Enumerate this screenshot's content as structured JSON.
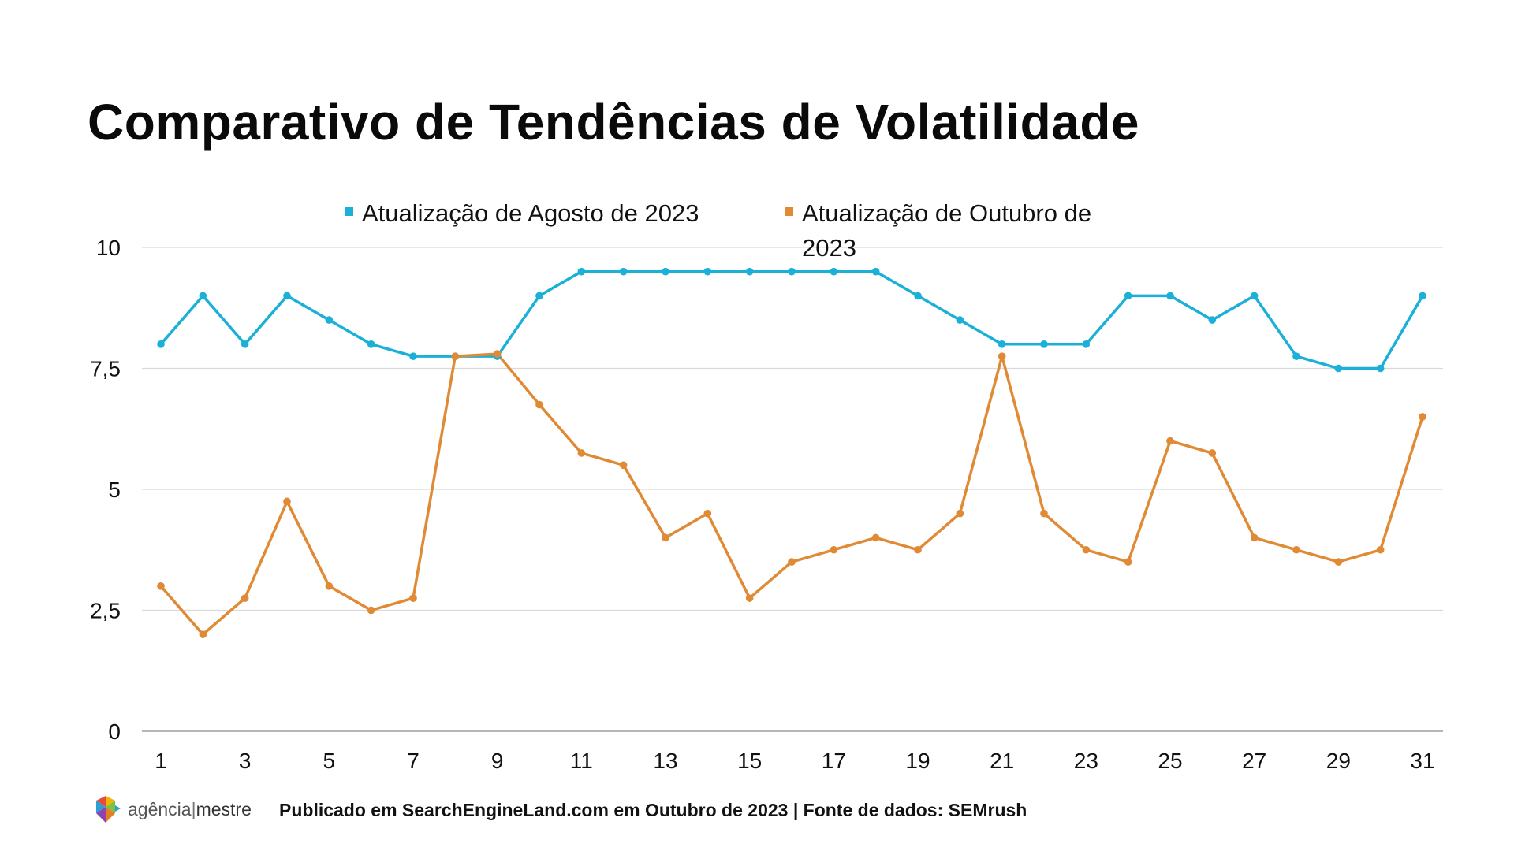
{
  "footer": {
    "logo_brand": "agência",
    "logo_separator": "|",
    "logo_brand2": "mestre",
    "source": "Publicado em SearchEngineLand.com em Outubro de 2023 | Fonte de dados: SEMrush"
  },
  "colors": {
    "series_aug": "#1ab0d8",
    "series_oct": "#e08a35",
    "grid": "#d9d9d9",
    "axis": "#9e9e9e"
  },
  "chart_data": {
    "type": "line",
    "title": "Comparativo de Tendências de Volatilidade",
    "xlabel": "",
    "ylabel": "",
    "ylim": [
      0,
      10
    ],
    "yticks": [
      0,
      2.5,
      5,
      7.5,
      10
    ],
    "ytick_labels": [
      "0",
      "2,5",
      "5",
      "7,5",
      "10"
    ],
    "x": [
      1,
      2,
      3,
      4,
      5,
      6,
      7,
      8,
      9,
      10,
      11,
      12,
      13,
      14,
      15,
      16,
      17,
      18,
      19,
      20,
      21,
      22,
      23,
      24,
      25,
      26,
      27,
      28,
      29,
      30,
      31
    ],
    "xtick_labels": [
      "1",
      "3",
      "5",
      "7",
      "9",
      "11",
      "13",
      "15",
      "17",
      "19",
      "21",
      "23",
      "25",
      "27",
      "29",
      "31"
    ],
    "grid": true,
    "legend_position": "top-center",
    "series": [
      {
        "name": "Atualização de Agosto de 2023",
        "values": [
          8,
          9,
          8,
          9,
          8.5,
          8,
          7.75,
          7.75,
          7.75,
          9,
          9.5,
          9.5,
          9.5,
          9.5,
          9.5,
          9.5,
          9.5,
          9.5,
          9,
          8.5,
          8,
          8,
          8,
          9,
          9,
          8.5,
          9,
          7.75,
          7.5,
          7.5,
          9
        ]
      },
      {
        "name": "Atualização de Outubro de 2023",
        "values": [
          3,
          2,
          2.75,
          4.75,
          3,
          2.5,
          2.75,
          7.75,
          7.8,
          6.75,
          5.75,
          5.5,
          4,
          4.5,
          2.75,
          3.5,
          3.75,
          4,
          3.75,
          4.5,
          7.75,
          4.5,
          3.75,
          3.5,
          6,
          5.75,
          4,
          3.75,
          3.5,
          3.75,
          6.5
        ]
      }
    ]
  }
}
